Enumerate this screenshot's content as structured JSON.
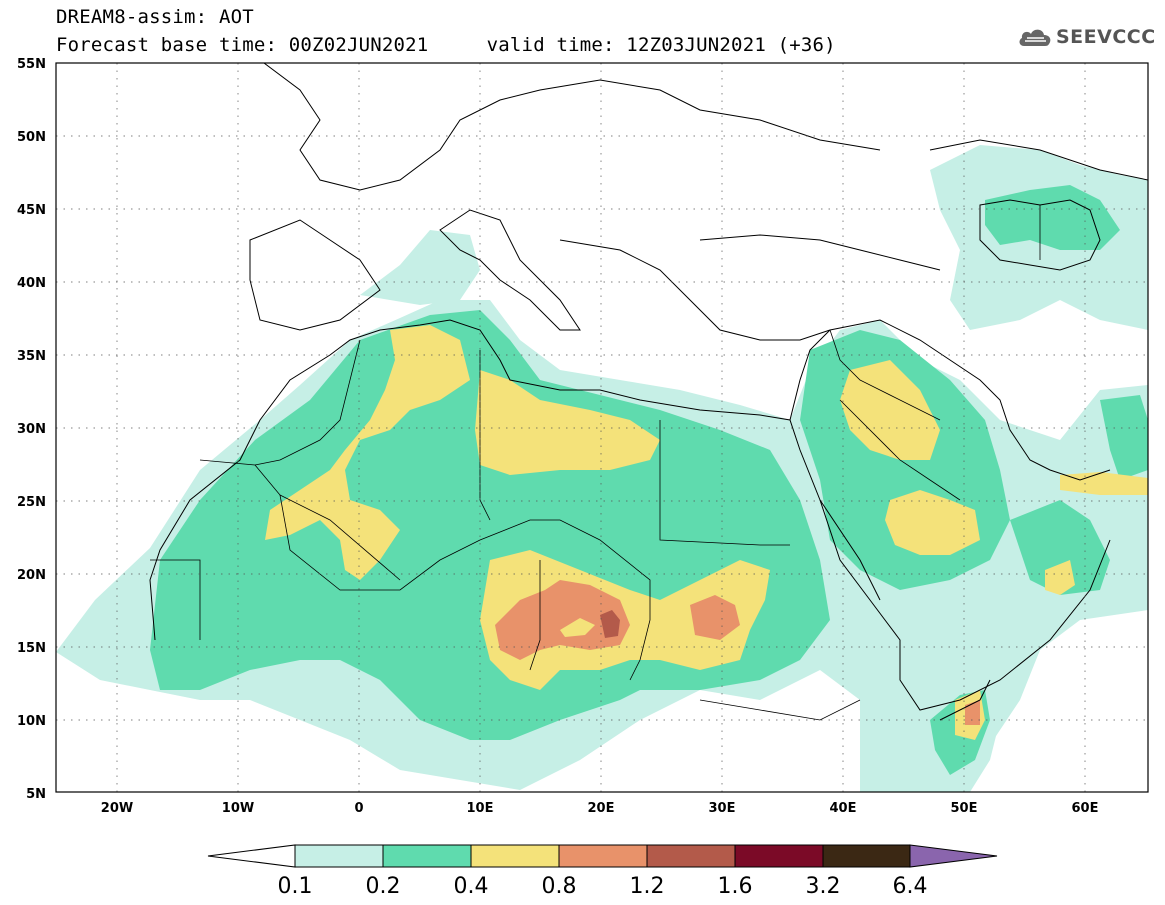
{
  "header": {
    "line1": "DREAM8-assim: AOT",
    "line2": "Forecast base time: 00Z02JUN2021     valid time: 12Z03JUN2021 (+36)",
    "logo_text": "SEEVCCC"
  },
  "map": {
    "lon_range": [
      -25,
      65
    ],
    "lat_range": [
      5,
      55
    ],
    "lat_labels": [
      "55N",
      "50N",
      "45N",
      "40N",
      "35N",
      "30N",
      "25N",
      "20N",
      "15N",
      "10N",
      "5N"
    ],
    "lon_labels": [
      "20W",
      "10W",
      "0",
      "10E",
      "20E",
      "30E",
      "40E",
      "50E",
      "60E"
    ]
  },
  "colorbar": {
    "levels": [
      "0.1",
      "0.2",
      "0.4",
      "0.8",
      "1.2",
      "1.6",
      "3.2",
      "6.4"
    ],
    "colors": {
      "below": "#ffffff",
      "c1": "#c6efe6",
      "c2": "#5fdbae",
      "c3": "#f4e27a",
      "c4": "#e8926a",
      "c5": "#b35a4a",
      "c6": "#7b0a27",
      "c7": "#3b2814",
      "above": "#8a65ad"
    }
  }
}
